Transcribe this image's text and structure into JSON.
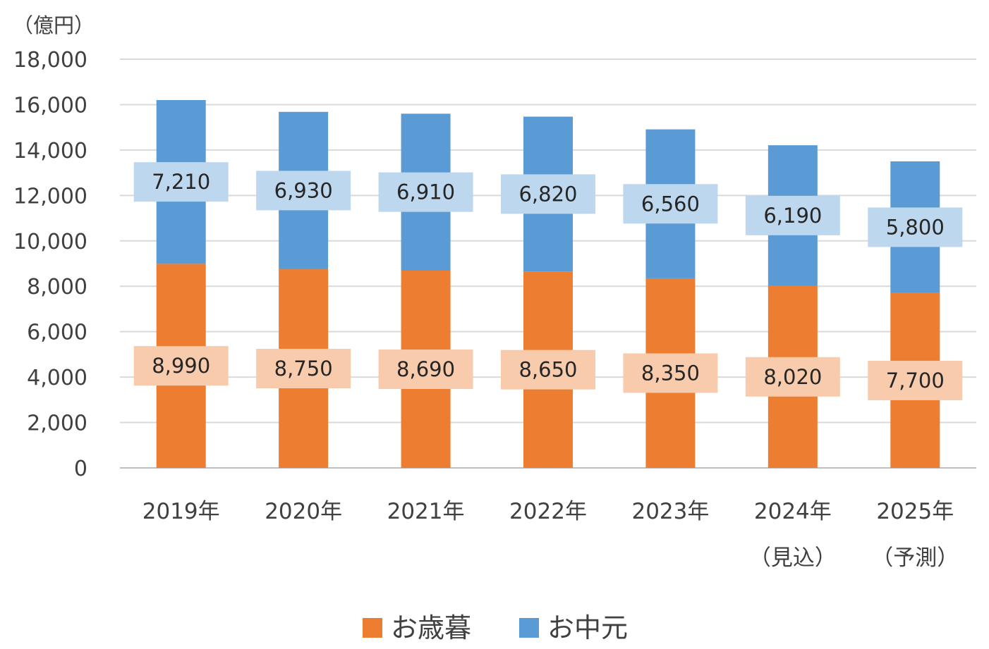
{
  "chart_data": {
    "type": "bar",
    "stacked": true,
    "unit_label": "（億円）",
    "categories": [
      [
        "2019年"
      ],
      [
        "2020年"
      ],
      [
        "2021年"
      ],
      [
        "2022年"
      ],
      [
        "2023年"
      ],
      [
        "2024年",
        "（見込）"
      ],
      [
        "2025年",
        "（予測）"
      ]
    ],
    "series": [
      {
        "name": "お歳暮",
        "color": "#ED7D31",
        "label_bg": "#F8CBAD",
        "values": [
          8990,
          8750,
          8690,
          8650,
          8350,
          8020,
          7700
        ],
        "labels": [
          "8,990",
          "8,750",
          "8,690",
          "8,650",
          "8,350",
          "8,020",
          "7,700"
        ]
      },
      {
        "name": "お中元",
        "color": "#5B9BD5",
        "label_bg": "#BDD7EE",
        "values": [
          7210,
          6930,
          6910,
          6820,
          6560,
          6190,
          5800
        ],
        "labels": [
          "7,210",
          "6,930",
          "6,910",
          "6,820",
          "6,560",
          "6,190",
          "5,800"
        ]
      }
    ],
    "ylim": [
      0,
      18000
    ],
    "yticks": [
      0,
      2000,
      4000,
      6000,
      8000,
      10000,
      12000,
      14000,
      16000,
      18000
    ],
    "ytick_labels": [
      "0",
      "2,000",
      "4,000",
      "6,000",
      "8,000",
      "10,000",
      "12,000",
      "14,000",
      "16,000",
      "18,000"
    ],
    "grid": true,
    "legend_position": "bottom"
  }
}
